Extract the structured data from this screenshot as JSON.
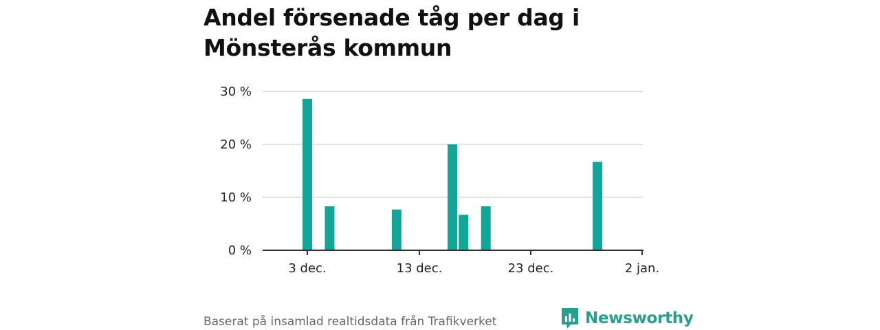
{
  "chart_data": {
    "type": "bar",
    "title": "Andel försenade tåg per dag i Mönsterås kommun",
    "xlabel": "",
    "ylabel": "",
    "x_ticks": [
      "3 dec.",
      "13 dec.",
      "23 dec.",
      "2 jan."
    ],
    "y_ticks": [
      "0 %",
      "10 %",
      "20 %",
      "30 %"
    ],
    "ylim": [
      0,
      30
    ],
    "grid": true,
    "color": "#12a598",
    "dates": [
      "2022-12-03",
      "2022-12-05",
      "2022-12-11",
      "2022-12-16",
      "2022-12-17",
      "2022-12-19",
      "2022-12-29"
    ],
    "values": [
      28.6,
      8.3,
      7.7,
      20.0,
      6.7,
      8.3,
      16.7
    ]
  },
  "footer": {
    "source": "Baserat på insamlad realtidsdata från Trafikverket",
    "brand": "Newsworthy"
  }
}
